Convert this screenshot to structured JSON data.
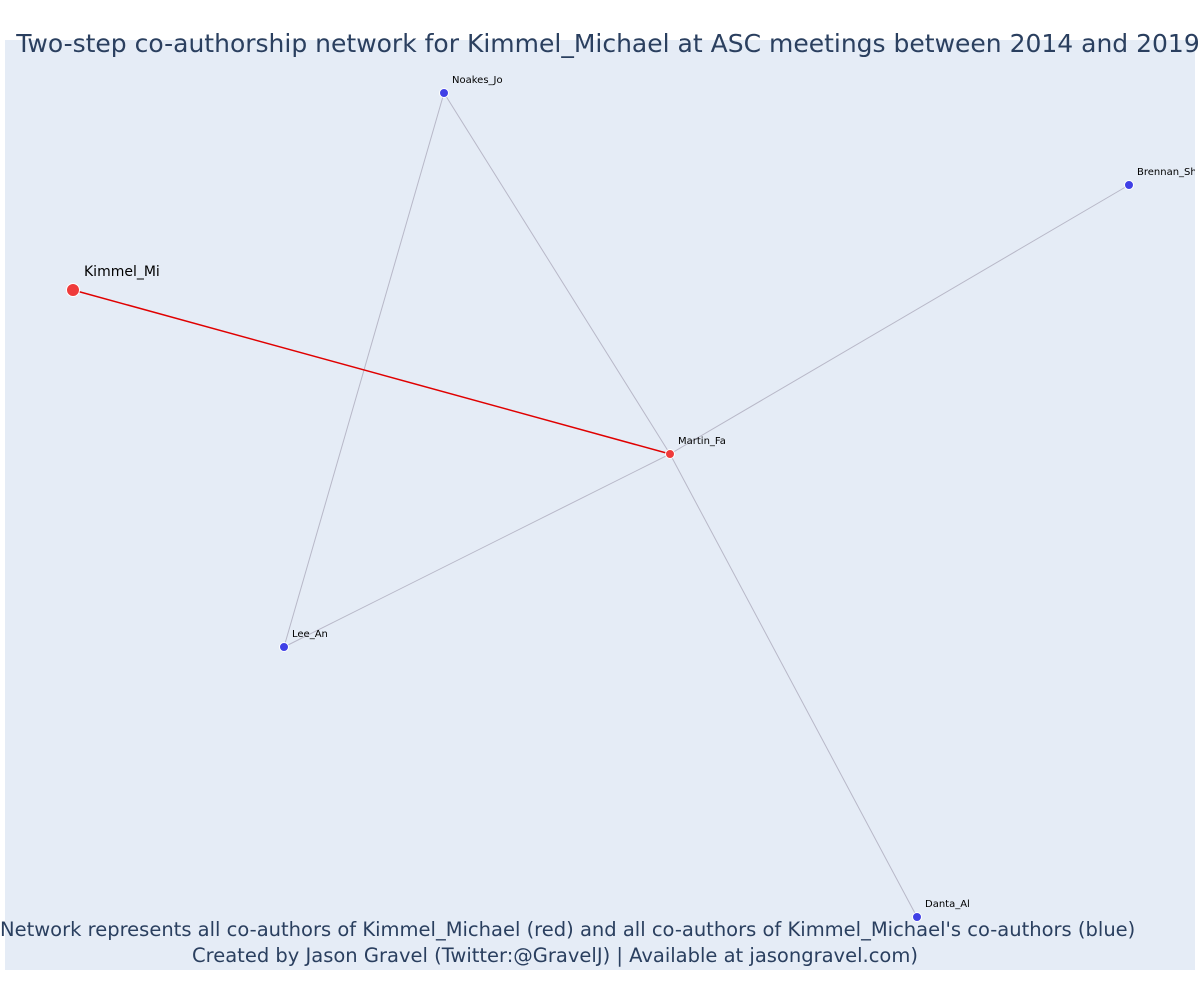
{
  "title": "Two-step co-authorship network for Kimmel_Michael at ASC meetings between 2014 and 2019",
  "caption": {
    "line1": "Network represents all co-authors of Kimmel_Michael (red) and all co-authors of Kimmel_Michael's co-authors (blue)",
    "line2": "Created by Jason Gravel (Twitter:@GravelJ) | Available at jasongravel.com)"
  },
  "colors": {
    "background": "#e5ecf6",
    "focal_node": "#ef3b3b",
    "coauthor_node": "#ef3b3b",
    "second_step_node": "#4040e6",
    "focal_edge": "#e00000",
    "other_edge": "#b8b8c8",
    "title_text": "#2a3f5f"
  },
  "network": {
    "nodes": [
      {
        "id": "kimmel",
        "label": "Kimmel_Mi",
        "group": "focal"
      },
      {
        "id": "martin",
        "label": "Martin_Fa",
        "group": "coauthor"
      },
      {
        "id": "noakes",
        "label": "Noakes_Jo",
        "group": "second_step"
      },
      {
        "id": "brennan",
        "label": "Brennan_Sh",
        "group": "second_step"
      },
      {
        "id": "lee",
        "label": "Lee_An",
        "group": "second_step"
      },
      {
        "id": "danta",
        "label": "Danta_Al",
        "group": "second_step"
      }
    ],
    "edges": [
      {
        "source": "kimmel",
        "target": "martin",
        "type": "focal"
      },
      {
        "source": "noakes",
        "target": "martin",
        "type": "other"
      },
      {
        "source": "noakes",
        "target": "lee",
        "type": "other"
      },
      {
        "source": "brennan",
        "target": "martin",
        "type": "other"
      },
      {
        "source": "lee",
        "target": "martin",
        "type": "other"
      },
      {
        "source": "danta",
        "target": "martin",
        "type": "other"
      }
    ]
  }
}
